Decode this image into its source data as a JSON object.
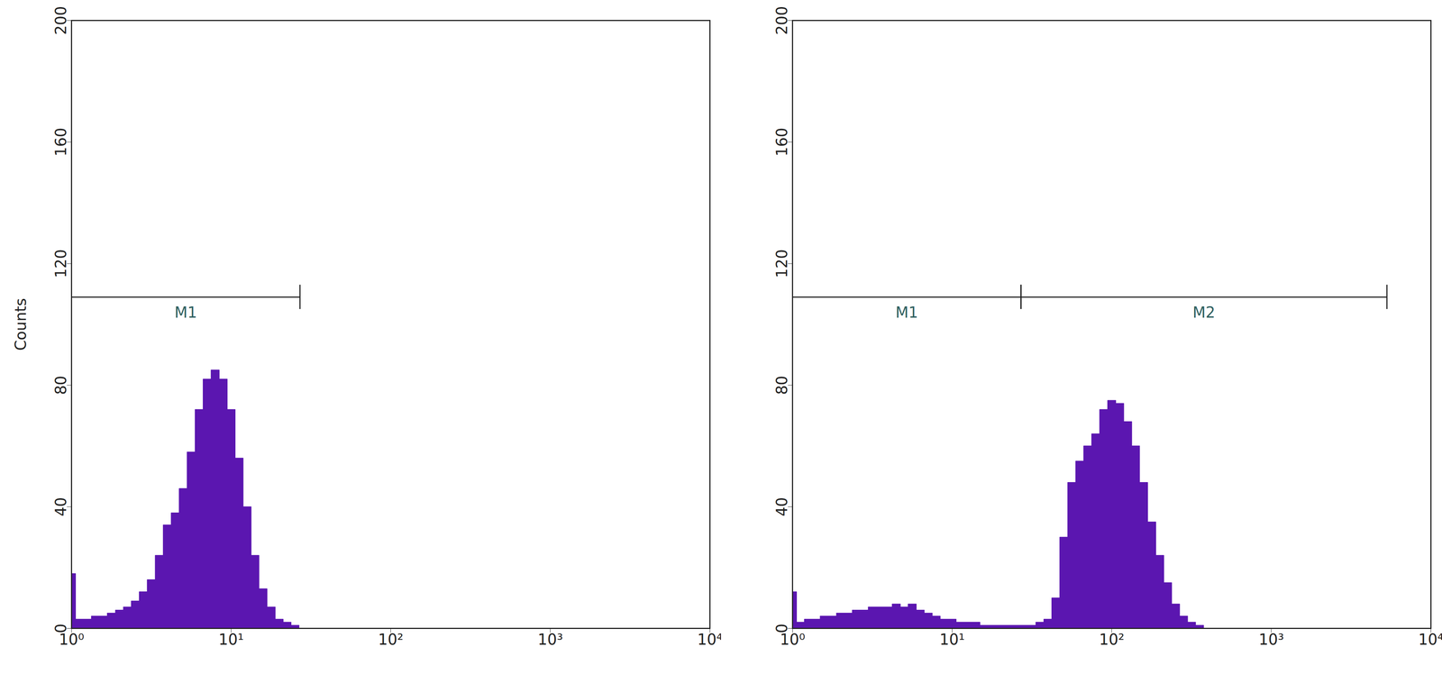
{
  "chart_data": [
    {
      "type": "area",
      "ylabel": "Counts",
      "color": "#5b16b0",
      "log": "x",
      "xlim": [
        1,
        10000
      ],
      "xticks": [
        {
          "value": 1,
          "label": "10⁰"
        },
        {
          "value": 10,
          "label": "10¹"
        },
        {
          "value": 100,
          "label": "10²"
        },
        {
          "value": 1000,
          "label": "10³"
        },
        {
          "value": 10000,
          "label": "10⁴"
        }
      ],
      "ylim": [
        0,
        200
      ],
      "yticks": [
        0,
        40,
        80,
        120,
        160,
        200
      ],
      "x": [
        1,
        1.12,
        1.26,
        1.41,
        1.58,
        1.78,
        2,
        2.24,
        2.51,
        2.82,
        3.16,
        3.55,
        3.98,
        4.47,
        5.01,
        5.62,
        6.31,
        7.08,
        7.94,
        8.91,
        10,
        11.2,
        12.6,
        14.1,
        15.8,
        17.8,
        20,
        22.4,
        25.1,
        28.2,
        31.6
      ],
      "values": [
        18,
        3,
        3,
        4,
        4,
        5,
        6,
        7,
        9,
        12,
        16,
        24,
        34,
        38,
        46,
        58,
        72,
        82,
        85,
        82,
        72,
        56,
        40,
        24,
        13,
        7,
        3,
        2,
        1,
        0,
        0
      ],
      "markers": [
        {
          "label": "M1",
          "x": [
            1,
            27
          ],
          "y": 109
        }
      ]
    },
    {
      "type": "area",
      "color": "#5b16b0",
      "log": "x",
      "xlim": [
        1,
        10000
      ],
      "xticks": [
        {
          "value": 1,
          "label": "10⁰"
        },
        {
          "value": 10,
          "label": "10¹"
        },
        {
          "value": 100,
          "label": "10²"
        },
        {
          "value": 1000,
          "label": "10³"
        },
        {
          "value": 10000,
          "label": "10⁴"
        }
      ],
      "ylim": [
        0,
        200
      ],
      "yticks": [
        0,
        40,
        80,
        120,
        160,
        200
      ],
      "x": [
        1,
        1.12,
        1.26,
        1.41,
        1.58,
        1.78,
        2,
        2.24,
        2.51,
        2.82,
        3.16,
        3.55,
        3.98,
        4.47,
        5.01,
        5.62,
        6.31,
        7.08,
        7.94,
        8.91,
        10,
        11.2,
        12.6,
        14.1,
        15.8,
        17.8,
        20,
        22.4,
        25.1,
        28.2,
        31.6,
        35.5,
        39.8,
        44.7,
        50.1,
        56.2,
        63.1,
        70.8,
        79.4,
        89.1,
        100,
        112,
        126,
        141,
        158,
        178,
        200,
        224,
        251,
        282,
        316,
        355,
        398,
        447,
        501
      ],
      "values": [
        12,
        2,
        3,
        3,
        4,
        4,
        5,
        5,
        6,
        6,
        7,
        7,
        7,
        8,
        7,
        8,
        6,
        5,
        4,
        3,
        3,
        2,
        2,
        2,
        1,
        1,
        1,
        1,
        1,
        1,
        1,
        2,
        3,
        10,
        30,
        48,
        55,
        60,
        64,
        72,
        75,
        74,
        68,
        60,
        48,
        35,
        24,
        15,
        8,
        4,
        2,
        1,
        0,
        0,
        0
      ],
      "markers": [
        {
          "label": "M1",
          "x": [
            1,
            27
          ],
          "y": 109
        },
        {
          "label": "M2",
          "x": [
            27,
            5300
          ],
          "y": 109
        }
      ]
    }
  ]
}
